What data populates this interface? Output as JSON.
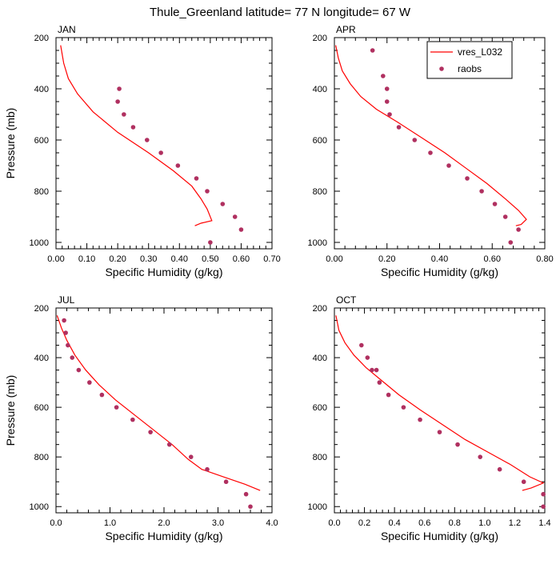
{
  "title": "Thule_Greenland  latitude= 77 N longitude= 67 W",
  "legend": {
    "model_label": "vres_L032",
    "obs_label": "raobs",
    "model_color": "#ff0000",
    "obs_color": "#b03060"
  },
  "chart_data": [
    {
      "type": "line",
      "panel": "JAN",
      "xlabel": "Specific Humidity (g/kg)",
      "ylabel": "Pressure (mb)",
      "xlim": [
        0,
        0.7
      ],
      "xticks": [
        0.0,
        0.1,
        0.2,
        0.3,
        0.4,
        0.5,
        0.6,
        0.7
      ],
      "xtick_labels": [
        "0.00",
        "0.10",
        "0.20",
        "0.30",
        "0.40",
        "0.50",
        "0.60",
        "0.70"
      ],
      "ylim": [
        200,
        1025
      ],
      "yticks": [
        200,
        400,
        600,
        800,
        1000
      ],
      "ytick_labels": [
        "200",
        "400",
        "600",
        "800",
        "1000"
      ],
      "ylabel_visible": true,
      "model": {
        "name": "vres_L032",
        "x": [
          0.015,
          0.025,
          0.04,
          0.07,
          0.12,
          0.2,
          0.3,
          0.38,
          0.44,
          0.47,
          0.49,
          0.505,
          0.47,
          0.45
        ],
        "y": [
          230,
          300,
          360,
          420,
          490,
          570,
          650,
          720,
          780,
          830,
          870,
          915,
          925,
          935
        ]
      },
      "obs": {
        "name": "raobs",
        "x": [
          0.205,
          0.2,
          0.22,
          0.25,
          0.295,
          0.34,
          0.395,
          0.455,
          0.49,
          0.54,
          0.58,
          0.6,
          0.5
        ],
        "y": [
          400,
          450,
          500,
          550,
          600,
          650,
          700,
          750,
          800,
          850,
          900,
          950,
          1000
        ]
      }
    },
    {
      "type": "line",
      "panel": "APR",
      "xlabel": "Specific Humidity (g/kg)",
      "ylabel": "",
      "xlim": [
        0,
        0.8
      ],
      "xticks": [
        0.0,
        0.2,
        0.4,
        0.6,
        0.8
      ],
      "xtick_labels": [
        "0.00",
        "0.20",
        "0.40",
        "0.60",
        "0.80"
      ],
      "ylim": [
        200,
        1025
      ],
      "yticks": [
        200,
        400,
        600,
        800,
        1000
      ],
      "ytick_labels": [
        "200",
        "400",
        "600",
        "800",
        "1000"
      ],
      "ylabel_visible": false,
      "model": {
        "name": "vres_L032",
        "x": [
          0.005,
          0.015,
          0.03,
          0.06,
          0.1,
          0.16,
          0.24,
          0.33,
          0.42,
          0.5,
          0.58,
          0.65,
          0.7,
          0.73,
          0.71,
          0.69
        ],
        "y": [
          230,
          280,
          330,
          380,
          430,
          480,
          530,
          590,
          650,
          710,
          770,
          830,
          875,
          910,
          930,
          935
        ]
      },
      "obs": {
        "name": "raobs",
        "x": [
          0.145,
          0.185,
          0.2,
          0.2,
          0.21,
          0.245,
          0.305,
          0.365,
          0.435,
          0.505,
          0.56,
          0.61,
          0.65,
          0.7,
          0.67
        ],
        "y": [
          250,
          350,
          400,
          450,
          500,
          550,
          600,
          650,
          700,
          750,
          800,
          850,
          900,
          950,
          1000
        ]
      }
    },
    {
      "type": "line",
      "panel": "JUL",
      "xlabel": "Specific Humidity (g/kg)",
      "ylabel": "Pressure (mb)",
      "xlim": [
        0,
        4.0
      ],
      "xticks": [
        0.0,
        1.0,
        2.0,
        3.0,
        4.0
      ],
      "xtick_labels": [
        "0.0",
        "1.0",
        "2.0",
        "3.0",
        "4.0"
      ],
      "ylim": [
        200,
        1025
      ],
      "yticks": [
        200,
        400,
        600,
        800,
        1000
      ],
      "ytick_labels": [
        "200",
        "400",
        "600",
        "800",
        "1000"
      ],
      "ylabel_visible": true,
      "model": {
        "name": "vres_L032",
        "x": [
          0.02,
          0.1,
          0.2,
          0.35,
          0.55,
          0.8,
          1.1,
          1.45,
          1.8,
          2.15,
          2.45,
          2.7,
          3.1,
          3.5,
          3.78
        ],
        "y": [
          230,
          280,
          330,
          390,
          450,
          510,
          570,
          630,
          690,
          750,
          810,
          850,
          880,
          910,
          935
        ]
      },
      "obs": {
        "name": "raobs",
        "x": [
          0.15,
          0.18,
          0.22,
          0.3,
          0.42,
          0.62,
          0.85,
          1.12,
          1.42,
          1.75,
          2.1,
          2.5,
          2.8,
          3.15,
          3.52,
          3.6
        ],
        "y": [
          250,
          300,
          350,
          400,
          450,
          500,
          550,
          600,
          650,
          700,
          750,
          800,
          850,
          900,
          950,
          1000
        ]
      }
    },
    {
      "type": "line",
      "panel": "OCT",
      "xlabel": "Specific Humidity (g/kg)",
      "ylabel": "",
      "xlim": [
        0,
        1.4
      ],
      "xticks": [
        0.0,
        0.2,
        0.4,
        0.6,
        0.8,
        1.0,
        1.2,
        1.4
      ],
      "xtick_labels": [
        "0.0",
        "0.2",
        "0.4",
        "0.6",
        "0.8",
        "1.0",
        "1.2",
        "1.4"
      ],
      "ylim": [
        200,
        1025
      ],
      "yticks": [
        200,
        400,
        600,
        800,
        1000
      ],
      "ytick_labels": [
        "200",
        "400",
        "600",
        "800",
        "1000"
      ],
      "ylabel_visible": false,
      "model": {
        "name": "vres_L032",
        "x": [
          0.01,
          0.03,
          0.07,
          0.13,
          0.21,
          0.31,
          0.43,
          0.57,
          0.72,
          0.87,
          1.02,
          1.17,
          1.3,
          1.39,
          1.31,
          1.25
        ],
        "y": [
          230,
          290,
          340,
          390,
          440,
          490,
          550,
          610,
          670,
          730,
          780,
          830,
          880,
          905,
          925,
          935
        ]
      },
      "obs": {
        "name": "raobs",
        "x": [
          0.18,
          0.22,
          0.25,
          0.28,
          0.3,
          0.36,
          0.46,
          0.57,
          0.7,
          0.82,
          0.97,
          1.1,
          1.26,
          1.39,
          1.39
        ],
        "y": [
          350,
          400,
          450,
          450,
          500,
          550,
          600,
          650,
          700,
          750,
          800,
          850,
          900,
          950,
          1000
        ]
      }
    }
  ]
}
